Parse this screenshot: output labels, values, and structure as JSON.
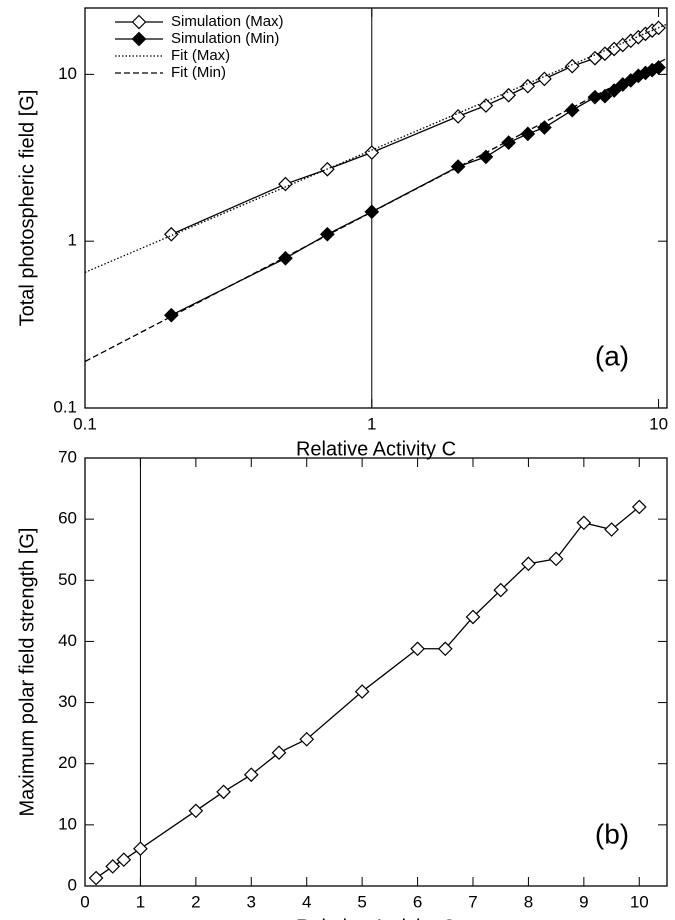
{
  "chart_data": [
    {
      "type": "line",
      "log_x": true,
      "log_y": true,
      "x_label": "Relative Activity C",
      "y_label": "Total photospheric field [G]",
      "annotation": "(a)",
      "reference_x": 1,
      "legend": "upper left",
      "xlim": [
        0.1,
        10.7
      ],
      "ylim": [
        0.1,
        25
      ],
      "xticks": [
        0.1,
        1,
        10
      ],
      "yticks": [
        0.1,
        1,
        10
      ],
      "series": [
        {
          "name": "Simulation (Max)",
          "color": "#000000",
          "line_style": "solid",
          "marker": "diamond-open",
          "x": [
            0.2,
            0.5,
            0.7,
            1,
            2,
            2.5,
            3,
            3.5,
            4,
            5,
            6,
            6.5,
            7,
            7.5,
            8,
            8.5,
            9,
            9.5,
            10
          ],
          "values": [
            1.1,
            2.2,
            2.7,
            3.4,
            5.6,
            6.5,
            7.5,
            8.5,
            9.4,
            11.2,
            12.5,
            13.3,
            14.2,
            15.0,
            15.9,
            16.7,
            17.5,
            18.3,
            19.0
          ]
        },
        {
          "name": "Simulation (Min)",
          "color": "#000000",
          "line_style": "solid",
          "marker": "diamond-filled",
          "x": [
            0.2,
            0.5,
            0.7,
            1,
            2,
            2.5,
            3,
            3.5,
            4,
            5,
            6,
            6.5,
            7,
            7.5,
            8,
            8.5,
            9,
            9.5,
            10
          ],
          "values": [
            0.36,
            0.79,
            1.1,
            1.5,
            2.8,
            3.2,
            3.9,
            4.4,
            4.8,
            6.1,
            7.3,
            7.4,
            8.0,
            8.7,
            9.2,
            9.8,
            10.2,
            10.6,
            11.0
          ]
        },
        {
          "name": "Fit (Max)",
          "color": "#000000",
          "line_style": "dotted",
          "marker": "none",
          "x": [
            0.1,
            10.7
          ],
          "values": [
            0.65,
            20
          ]
        },
        {
          "name": "Fit (Min)",
          "color": "#000000",
          "line_style": "dashed",
          "marker": "none",
          "x": [
            0.1,
            10.7
          ],
          "values": [
            0.19,
            12.5
          ]
        }
      ]
    },
    {
      "type": "line",
      "log_x": false,
      "log_y": false,
      "x_label": "Relative Activity C",
      "y_label": "Maximum polar field strength [G]",
      "annotation": "(b)",
      "reference_x": 1,
      "xlim": [
        0,
        10.5
      ],
      "ylim": [
        0,
        70
      ],
      "xticks": [
        0,
        1,
        2,
        3,
        4,
        5,
        6,
        7,
        8,
        9,
        10
      ],
      "yticks": [
        0,
        10,
        20,
        30,
        40,
        50,
        60,
        70
      ],
      "series": [
        {
          "color": "#000000",
          "line_style": "solid",
          "marker": "diamond-open",
          "x": [
            0.2,
            0.5,
            0.7,
            1,
            2,
            2.5,
            3,
            3.5,
            4,
            5,
            6,
            6.5,
            7,
            7.5,
            8,
            8.5,
            9,
            9.5,
            10
          ],
          "values": [
            1.3,
            3.2,
            4.3,
            6.1,
            12.3,
            15.4,
            18.2,
            21.8,
            24,
            31.8,
            38.8,
            38.8,
            44,
            48.4,
            52.7,
            53.5,
            59.4,
            58.3,
            62
          ]
        }
      ]
    }
  ]
}
